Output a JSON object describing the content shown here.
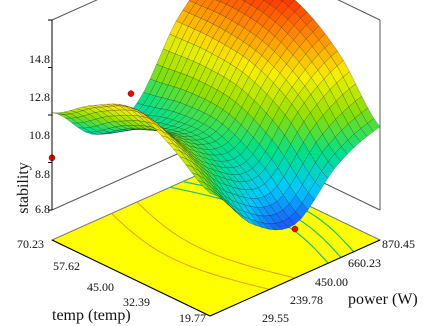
{
  "chart_data": {
    "type": "surface3d",
    "title": "",
    "zlabel": "stability",
    "xlabel": "temp (temp)",
    "ylabel": "power (W)",
    "z_ticks": [
      "6.8",
      "8.8",
      "10.8",
      "12.8",
      "14.8"
    ],
    "x_ticks": [
      "70.23",
      "57.62",
      "45.00",
      "32.39",
      "19.77"
    ],
    "y_ticks": [
      "29.55",
      "239.78",
      "450.00",
      "660.23",
      "870.45"
    ],
    "zlim": [
      6.8,
      14.8
    ],
    "temp_range": [
      19.77,
      70.23
    ],
    "power_range": [
      29.55,
      870.45
    ],
    "surface_grid": {
      "temp": [
        70.23,
        57.62,
        45.0,
        32.39,
        19.77
      ],
      "power": [
        29.55,
        239.78,
        450.0,
        660.23,
        870.45
      ],
      "stability": [
        [
          10.9,
          9.2,
          9.7,
          12.6,
          13.9
        ],
        [
          12.0,
          10.2,
          10.1,
          12.6,
          14.2
        ],
        [
          12.7,
          10.7,
          10.1,
          12.3,
          13.8
        ],
        [
          11.9,
          10.0,
          9.2,
          11.3,
          12.5
        ],
        [
          10.7,
          8.6,
          7.8,
          9.5,
          10.3
        ]
      ]
    },
    "design_points": [
      {
        "temp": 70.23,
        "power": 29.55,
        "stability": 9.0
      },
      {
        "temp": 45.0,
        "power": 29.55,
        "stability": 13.3
      },
      {
        "temp": 19.77,
        "power": 450.0,
        "stability": 7.6
      }
    ],
    "colormap": [
      "#1f3fff",
      "#00c8ff",
      "#00e08a",
      "#8ee000",
      "#f6f000",
      "#ff8a00",
      "#ff1a00"
    ],
    "floor_color": "#ffff00",
    "contour_color": "#1fbf7a",
    "point_color": "#ff0000"
  }
}
